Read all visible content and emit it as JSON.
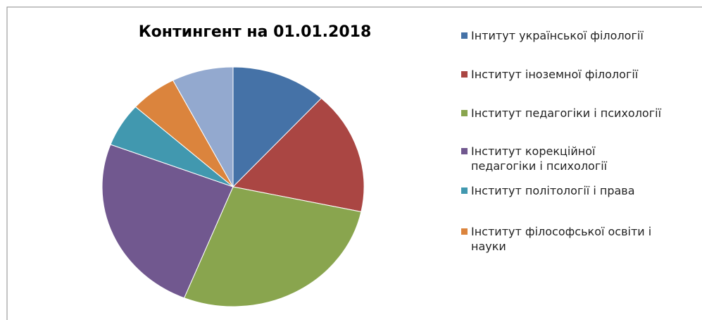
{
  "chart_data": {
    "type": "pie",
    "title": "Контингент на 01.01.2018",
    "categories": [
      "Інтитут української філології",
      "Інститут іноземної філології",
      "Інститут педагогіки і психології",
      "Інститут корекційної педагогіки і психології",
      "Інститут політології і права",
      "Інститут філософської освіти і науки",
      null
    ],
    "values": [
      11.8,
      16.6,
      27.8,
      24.7,
      5.9,
      5.8,
      7.6
    ],
    "colors": [
      "#4572a7",
      "#aa4643",
      "#89a54e",
      "#71588f",
      "#4198af",
      "#db843d",
      "#93a9cf"
    ],
    "legend": "right"
  }
}
